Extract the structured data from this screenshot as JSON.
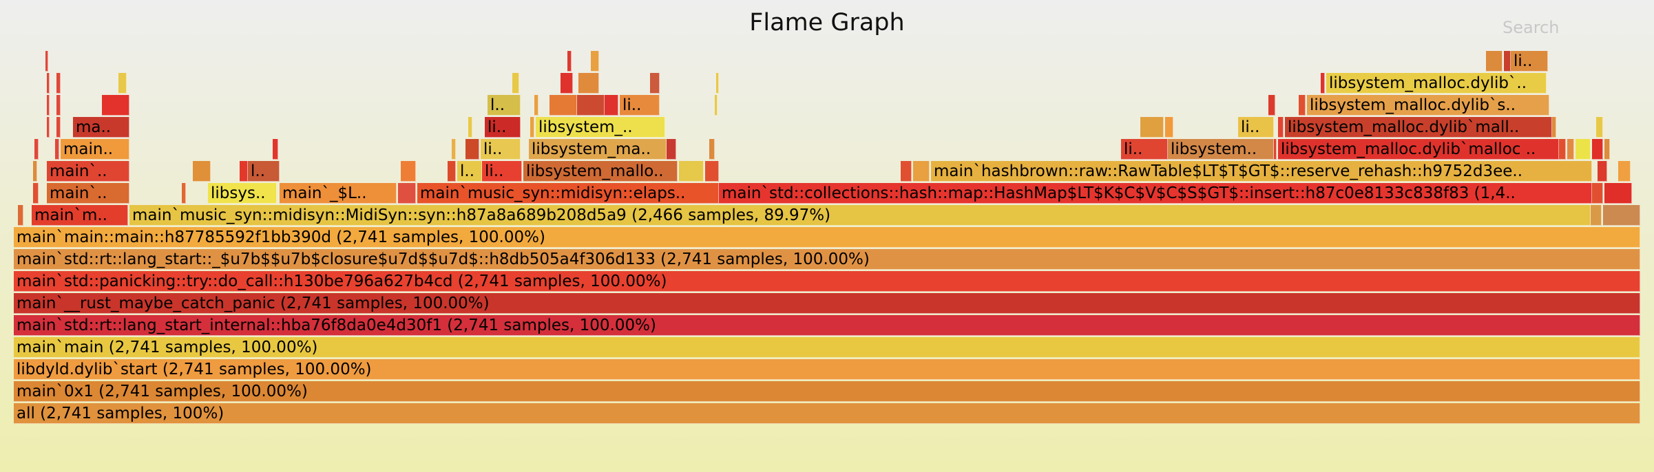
{
  "title": "Flame Graph",
  "search_label": "Search",
  "frames": [
    {
      "label": "all (2,741 samples, 100%)",
      "color": "#e0923d",
      "row": 0,
      "l": 20,
      "w": 2362
    },
    {
      "label": "main`0x1 (2,741 samples, 100.00%)",
      "color": "#dc8734",
      "row": 1,
      "l": 20,
      "w": 2362
    },
    {
      "label": "libdyld.dylib`start (2,741 samples, 100.00%)",
      "color": "#ef9b40",
      "row": 2,
      "l": 20,
      "w": 2362
    },
    {
      "label": "main`main (2,741 samples, 100.00%)",
      "color": "#e8c841",
      "row": 3,
      "l": 20,
      "w": 2362
    },
    {
      "label": "main`std::rt::lang_start_internal::hba76f8da0e4d30f1 (2,741 samples, 100.00%)",
      "color": "#d42f3b",
      "row": 4,
      "l": 20,
      "w": 2362
    },
    {
      "label": "main`__rust_maybe_catch_panic (2,741 samples, 100.00%)",
      "color": "#c9352b",
      "row": 5,
      "l": 20,
      "w": 2362
    },
    {
      "label": "main`std::panicking::try::do_call::h130be796a627b4cd (2,741 samples, 100.00%)",
      "color": "#e8412f",
      "row": 6,
      "l": 20,
      "w": 2362
    },
    {
      "label": "main`std::rt::lang_start::_$u7b$$u7b$closure$u7d$$u7d$::h8db505a4f306d133 (2,741 samples, 100.00%)",
      "color": "#e09244",
      "row": 7,
      "l": 20,
      "w": 2362
    },
    {
      "label": "main`main::main::h87785592f1bb390d (2,741 samples, 100.00%)",
      "color": "#f2aa3e",
      "row": 8,
      "l": 20,
      "w": 2362
    },
    {
      "label": "",
      "color": "#dc6b35",
      "row": 9,
      "l": 26,
      "w": 8
    },
    {
      "label": "main`m..",
      "color": "#e33e2c",
      "row": 9,
      "l": 46,
      "w": 140
    },
    {
      "label": "main`music_syn::midisyn::MidiSyn::syn::h87a8a689b208d5a9 (2,466 samples, 89.97%)",
      "color": "#e6c444",
      "row": 9,
      "l": 188,
      "w": 2122
    },
    {
      "label": "",
      "color": "#d99a48",
      "row": 9,
      "l": 2310,
      "w": 16
    },
    {
      "label": "",
      "color": "#cc8a50",
      "row": 9,
      "l": 2328,
      "w": 54
    },
    {
      "label": "",
      "color": "#e05030",
      "row": 10,
      "l": 48,
      "w": 8
    },
    {
      "label": "main`..",
      "color": "#d96a30",
      "row": 10,
      "l": 68,
      "w": 120
    },
    {
      "label": "",
      "color": "#e06832",
      "row": 10,
      "l": 264,
      "w": 6
    },
    {
      "label": "libsys..",
      "color": "#f0e34c",
      "row": 10,
      "l": 302,
      "w": 100
    },
    {
      "label": "main`_$L..",
      "color": "#ee8f3a",
      "row": 10,
      "l": 406,
      "w": 170
    },
    {
      "label": "",
      "color": "#e05040",
      "row": 10,
      "l": 578,
      "w": 26
    },
    {
      "label": "main`music_syn::midisyn::elaps..",
      "color": "#e8532a",
      "row": 10,
      "l": 606,
      "w": 438
    },
    {
      "label": "main`std::collections::hash::map::HashMap$LT$K$C$V$C$S$GT$::insert::h87c0e8133c838f83 (1,4..",
      "color": "#e6352e",
      "row": 10,
      "l": 1044,
      "w": 1268
    },
    {
      "label": "",
      "color": "#e05030",
      "row": 10,
      "l": 2312,
      "w": 16
    },
    {
      "label": "",
      "color": "#e02e28",
      "row": 10,
      "l": 2330,
      "w": 40
    },
    {
      "label": "",
      "color": "#dc8c3c",
      "row": 11,
      "l": 48,
      "w": 6
    },
    {
      "label": "main`..",
      "color": "#e04532",
      "row": 11,
      "l": 68,
      "w": 120
    },
    {
      "label": "",
      "color": "#e09038",
      "row": 11,
      "l": 280,
      "w": 26
    },
    {
      "label": "",
      "color": "#e2382a",
      "row": 11,
      "l": 348,
      "w": 12
    },
    {
      "label": "l..",
      "color": "#c85a35",
      "row": 11,
      "l": 360,
      "w": 46
    },
    {
      "label": "",
      "color": "#ee7e36",
      "row": 11,
      "l": 582,
      "w": 22
    },
    {
      "label": "",
      "color": "#dc4a2c",
      "row": 11,
      "l": 650,
      "w": 12
    },
    {
      "label": "l..",
      "color": "#e8c848",
      "row": 11,
      "l": 664,
      "w": 36
    },
    {
      "label": "li..",
      "color": "#e84030",
      "row": 11,
      "l": 700,
      "w": 58
    },
    {
      "label": "libsystem_mallo..",
      "color": "#cf6a34",
      "row": 11,
      "l": 760,
      "w": 224
    },
    {
      "label": "",
      "color": "#e6c84a",
      "row": 11,
      "l": 986,
      "w": 36
    },
    {
      "label": "",
      "color": "#e05030",
      "row": 11,
      "l": 1024,
      "w": 20
    },
    {
      "label": "",
      "color": "#e05030",
      "row": 11,
      "l": 1308,
      "w": 16
    },
    {
      "label": "",
      "color": "#e8a040",
      "row": 11,
      "l": 1326,
      "w": 24
    },
    {
      "label": "main`hashbrown::raw::RawTable$LT$T$GT$::reserve_rehash::h9752d3ee..",
      "color": "#e6b140",
      "row": 11,
      "l": 1352,
      "w": 960
    },
    {
      "label": "",
      "color": "#dc3a2c",
      "row": 11,
      "l": 2320,
      "w": 14
    },
    {
      "label": "",
      "color": "#f0a040",
      "row": 11,
      "l": 2350,
      "w": 18
    },
    {
      "label": "",
      "color": "#e04838",
      "row": 12,
      "l": 50,
      "w": 6
    },
    {
      "label": "",
      "color": "#e04838",
      "row": 12,
      "l": 80,
      "w": 6
    },
    {
      "label": "main..",
      "color": "#f09a3c",
      "row": 12,
      "l": 88,
      "w": 100
    },
    {
      "label": "",
      "color": "#e0362c",
      "row": 12,
      "l": 396,
      "w": 8
    },
    {
      "label": "",
      "color": "#e8b048",
      "row": 12,
      "l": 656,
      "w": 6
    },
    {
      "label": "",
      "color": "#cc4a28",
      "row": 12,
      "l": 676,
      "w": 20
    },
    {
      "label": "li..",
      "color": "#e8c850",
      "row": 12,
      "l": 698,
      "w": 58
    },
    {
      "label": "libsystem_ma..",
      "color": "#e0a64c",
      "row": 12,
      "l": 768,
      "w": 200
    },
    {
      "label": "",
      "color": "#c83a30",
      "row": 12,
      "l": 968,
      "w": 14
    },
    {
      "label": "",
      "color": "#dc8a3c",
      "row": 12,
      "l": 1030,
      "w": 8
    },
    {
      "label": "li..",
      "color": "#e04532",
      "row": 12,
      "l": 1628,
      "w": 68
    },
    {
      "label": "libsystem..",
      "color": "#d38848",
      "row": 12,
      "l": 1696,
      "w": 154
    },
    {
      "label": "",
      "color": "#e04532",
      "row": 12,
      "l": 1850,
      "w": 4
    },
    {
      "label": "libsystem_malloc.dylib`malloc ..",
      "color": "#e0322c",
      "row": 12,
      "l": 1856,
      "w": 408
    },
    {
      "label": "",
      "color": "#e05030",
      "row": 12,
      "l": 2264,
      "w": 10
    },
    {
      "label": "",
      "color": "#e28a44",
      "row": 12,
      "l": 2276,
      "w": 10
    },
    {
      "label": "",
      "color": "#ece348",
      "row": 12,
      "l": 2288,
      "w": 22
    },
    {
      "label": "",
      "color": "#e02e28",
      "row": 12,
      "l": 2312,
      "w": 16
    },
    {
      "label": "",
      "color": "#dc8c3c",
      "row": 12,
      "l": 2330,
      "w": 8
    },
    {
      "label": "",
      "color": "#e04838",
      "row": 13,
      "l": 68,
      "w": 4
    },
    {
      "label": "",
      "color": "#e04838",
      "row": 13,
      "l": 82,
      "w": 6
    },
    {
      "label": "ma..",
      "color": "#c8392c",
      "row": 13,
      "l": 106,
      "w": 82
    },
    {
      "label": "",
      "color": "#e8c848",
      "row": 13,
      "l": 680,
      "w": 6
    },
    {
      "label": "li..",
      "color": "#cc2a26",
      "row": 13,
      "l": 704,
      "w": 52
    },
    {
      "label": "",
      "color": "#e8a040",
      "row": 13,
      "l": 770,
      "w": 6
    },
    {
      "label": "libsystem_..",
      "color": "#ede04c",
      "row": 13,
      "l": 778,
      "w": 188
    },
    {
      "label": "",
      "color": "#e0a040",
      "row": 13,
      "l": 1656,
      "w": 34
    },
    {
      "label": "",
      "color": "#f09a3c",
      "row": 13,
      "l": 1692,
      "w": 12
    },
    {
      "label": "li..",
      "color": "#e9c248",
      "row": 13,
      "l": 1798,
      "w": 52
    },
    {
      "label": "",
      "color": "#e04532",
      "row": 13,
      "l": 1856,
      "w": 8
    },
    {
      "label": "libsystem_malloc.dylib`mall..",
      "color": "#c8402b",
      "row": 13,
      "l": 1866,
      "w": 388
    },
    {
      "label": "",
      "color": "#dc8c3c",
      "row": 13,
      "l": 2254,
      "w": 6
    },
    {
      "label": "",
      "color": "#e8c848",
      "row": 13,
      "l": 2318,
      "w": 10
    },
    {
      "label": "",
      "color": "#e04838",
      "row": 14,
      "l": 68,
      "w": 4
    },
    {
      "label": "",
      "color": "#e04838",
      "row": 14,
      "l": 82,
      "w": 6
    },
    {
      "label": "",
      "color": "#e3322b",
      "row": 14,
      "l": 148,
      "w": 40
    },
    {
      "label": "l..",
      "color": "#d5be4a",
      "row": 14,
      "l": 708,
      "w": 48
    },
    {
      "label": "",
      "color": "#e8a040",
      "row": 14,
      "l": 776,
      "w": 6
    },
    {
      "label": "",
      "color": "#e57a35",
      "row": 14,
      "l": 798,
      "w": 40
    },
    {
      "label": "",
      "color": "#cc4a30",
      "row": 14,
      "l": 838,
      "w": 40
    },
    {
      "label": "",
      "color": "#e0322c",
      "row": 14,
      "l": 878,
      "w": 20
    },
    {
      "label": "li..",
      "color": "#e88a3c",
      "row": 14,
      "l": 900,
      "w": 58
    },
    {
      "label": "",
      "color": "#e8c848",
      "row": 14,
      "l": 1038,
      "w": 4
    },
    {
      "label": "",
      "color": "#dc3a2c",
      "row": 14,
      "l": 1842,
      "w": 10
    },
    {
      "label": "",
      "color": "#e05030",
      "row": 14,
      "l": 1886,
      "w": 10
    },
    {
      "label": "libsystem_malloc.dylib`s..",
      "color": "#e6a04a",
      "row": 14,
      "l": 1898,
      "w": 352
    },
    {
      "label": "",
      "color": "#e04838",
      "row": 15,
      "l": 68,
      "w": 4
    },
    {
      "label": "",
      "color": "#e04838",
      "row": 15,
      "l": 82,
      "w": 6
    },
    {
      "label": "",
      "color": "#e8c848",
      "row": 15,
      "l": 172,
      "w": 12
    },
    {
      "label": "",
      "color": "#e8c848",
      "row": 15,
      "l": 744,
      "w": 10
    },
    {
      "label": "",
      "color": "#e0322c",
      "row": 15,
      "l": 814,
      "w": 18
    },
    {
      "label": "",
      "color": "#e08a3c",
      "row": 15,
      "l": 840,
      "w": 30
    },
    {
      "label": "",
      "color": "#cc5a3c",
      "row": 15,
      "l": 944,
      "w": 14
    },
    {
      "label": "",
      "color": "#e8c848",
      "row": 15,
      "l": 1040,
      "w": 4
    },
    {
      "label": "",
      "color": "#e0322c",
      "row": 15,
      "l": 1918,
      "w": 6
    },
    {
      "label": "libsystem_malloc.dylib`..",
      "color": "#e9cc46",
      "row": 15,
      "l": 1926,
      "w": 320
    },
    {
      "label": "",
      "color": "#e04838",
      "row": 16,
      "l": 66,
      "w": 4
    },
    {
      "label": "",
      "color": "#dc3a30",
      "row": 16,
      "l": 824,
      "w": 6
    },
    {
      "label": "",
      "color": "#e8a040",
      "row": 16,
      "l": 858,
      "w": 12
    },
    {
      "label": "",
      "color": "#dc8a3c",
      "row": 16,
      "l": 2158,
      "w": 24
    },
    {
      "label": "",
      "color": "#c8402b",
      "row": 16,
      "l": 2184,
      "w": 10
    },
    {
      "label": "li..",
      "color": "#dc8a3c",
      "row": 16,
      "l": 2194,
      "w": 54
    }
  ]
}
